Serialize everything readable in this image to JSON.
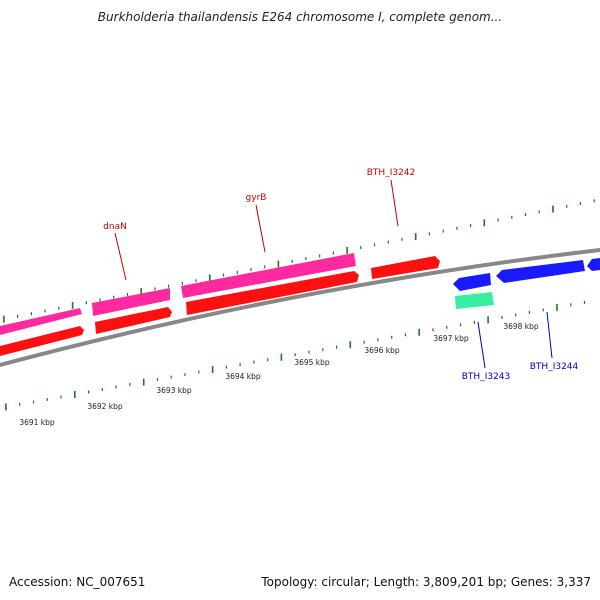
{
  "title": "Burkholderia thailandensis E264 chromosome I, complete genom...",
  "footer": {
    "accession": "Accession: NC_007651",
    "summary": "Topology: circular; Length: 3,809,201 bp; Genes: 3,337"
  },
  "colors": {
    "forward_gene": "#ff1010",
    "forward_gene_alt": "#ff2aa0",
    "reverse_gene": "#1a1aff",
    "reverse_gene_alt": "#35f0a0",
    "tick": "#1a7a1a",
    "backbone": "#888888",
    "label_forward": "#cc0000",
    "label_reverse": "#0000cc"
  },
  "scale_labels": [
    "3691 kbp",
    "3692 kbp",
    "3693 kbp",
    "3694 kbp",
    "3695 kbp",
    "3696 kbp",
    "3697 kbp",
    "3698 kbp"
  ],
  "gene_labels": {
    "forward": [
      "dnaN",
      "gyrB",
      "BTH_I3242"
    ],
    "reverse": [
      "BTH_I3243",
      "BTH_I3244"
    ]
  }
}
